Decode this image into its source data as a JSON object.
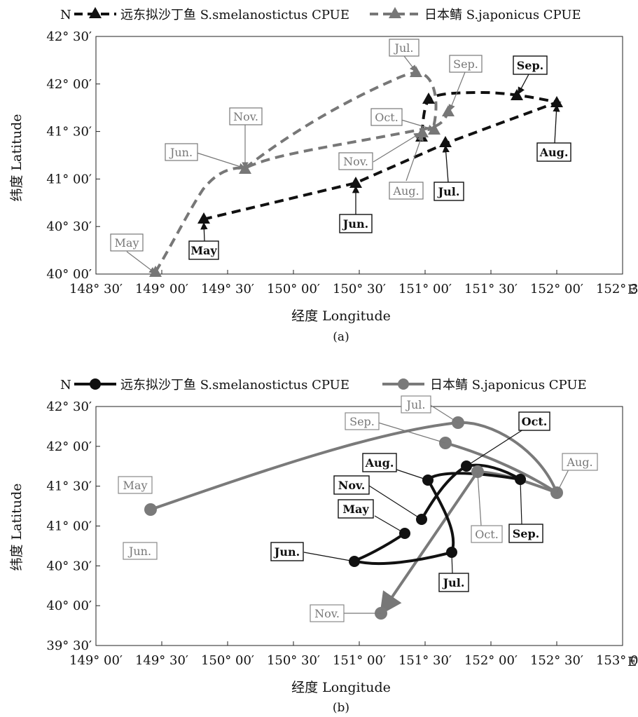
{
  "figure": {
    "north_label": "N",
    "east_label": "E",
    "xlabel": "经度 Longitude",
    "ylabel": "纬度 Latitude"
  },
  "chart_data": [
    {
      "type": "line",
      "panel_label": "(a)",
      "marker": "triangle",
      "line_style": "dashed",
      "xlim": [
        148.5,
        152.5
      ],
      "ylim": [
        40.0,
        42.5
      ],
      "x_ticks": [
        "148° 30′",
        "149° 00′",
        "149° 30′",
        "150° 00′",
        "150° 30′",
        "151° 00′",
        "151° 30′",
        "152° 00′",
        "152° 30′"
      ],
      "y_ticks": [
        "40° 00′",
        "40° 30′",
        "41° 00′",
        "41° 30′",
        "42° 00′",
        "42° 30′"
      ],
      "legend": [
        "远东拟沙丁鱼 S.smelanostictus CPUE",
        "日本鲭 S.japonicus CPUE"
      ],
      "series": [
        {
          "name": "远东拟沙丁鱼 S.smelanostictus CPUE",
          "color": "#111111",
          "points": [
            {
              "label": "May",
              "lon": 149.3,
              "lat": 40.62
            },
            {
              "label": "Jun.",
              "lon": 150.53,
              "lat": 40.98
            },
            {
              "label": "Jul.",
              "lon": 151.1,
              "lat": 41.45
            },
            {
              "label": "Aug.",
              "lon": 152.07,
              "lat": 41.78
            },
            {
              "label": "Sep.",
              "lon": 151.78,
              "lat": 41.88
            },
            {
              "label": "Oct.",
              "lon": 151.06,
              "lat": 41.85
            },
            {
              "label": "Nov.",
              "lon": 151.02,
              "lat": 41.48
            }
          ]
        },
        {
          "name": "日本鲭 S.japonicus CPUE",
          "color": "#707070",
          "points": [
            {
              "label": "May",
              "lon": 149.03,
              "lat": 40.02
            },
            {
              "label": "Jun.",
              "lon": 149.57,
              "lat": 41.13
            },
            {
              "label": "Jul.",
              "lon": 150.98,
              "lat": 42.13
            },
            {
              "label": "Aug.",
              "lon": 151.1,
              "lat": 41.53
            },
            {
              "label": "Sep.",
              "lon": 151.13,
              "lat": 41.72
            },
            {
              "label": "Oct.",
              "lon": 151.03,
              "lat": 41.52
            },
            {
              "label": "Nov.",
              "lon": 149.57,
              "lat": 41.13
            }
          ]
        }
      ]
    },
    {
      "type": "line",
      "panel_label": "(b)",
      "marker": "circle",
      "line_style": "solid",
      "xlim": [
        149.0,
        153.0
      ],
      "ylim": [
        39.5,
        42.5
      ],
      "x_ticks": [
        "149° 00′",
        "149° 30′",
        "150° 00′",
        "150° 30′",
        "151° 00′",
        "151° 30′",
        "152° 00′",
        "152° 30′",
        "153° 00′"
      ],
      "y_ticks": [
        "39° 30′",
        "40° 00′",
        "40° 30′",
        "41° 00′",
        "41° 30′",
        "42° 00′",
        "42° 30′"
      ],
      "legend": [
        "远东拟沙丁鱼 S.smelanostictus CPUE",
        "日本鲭 S.japonicus CPUE"
      ],
      "series": [
        {
          "name": "远东拟沙丁鱼 S.smelanostictus CPUE",
          "color": "#111111",
          "points": [
            {
              "label": "May",
              "lon": 151.02,
              "lat": 40.92
            },
            {
              "label": "Jun.",
              "lon": 150.58,
              "lat": 40.55
            },
            {
              "label": "Jul.",
              "lon": 151.78,
              "lat": 40.68
            },
            {
              "label": "Aug.",
              "lon": 151.58,
              "lat": 41.58
            },
            {
              "label": "Sep.",
              "lon": 152.43,
              "lat": 41.58
            },
            {
              "label": "Oct.",
              "lon": 151.83,
              "lat": 41.75
            },
            {
              "label": "Nov.",
              "lon": 151.47,
              "lat": 41.07
            }
          ]
        },
        {
          "name": "日本鲭 S.japonicus CPUE",
          "color": "#7a7a7a",
          "points": [
            {
              "label": "May",
              "lon": 149.48,
              "lat": 41.22
            },
            {
              "label": "Jun.",
              "lon": 149.48,
              "lat": 41.22
            },
            {
              "label": "Jul.",
              "lon": 151.93,
              "lat": 42.3
            },
            {
              "label": "Aug.",
              "lon": 152.7,
              "lat": 41.42
            },
            {
              "label": "Sep.",
              "lon": 151.82,
              "lat": 42.05
            },
            {
              "label": "Oct.",
              "lon": 152.07,
              "lat": 41.7
            },
            {
              "label": "Nov.",
              "lon": 151.3,
              "lat": 39.92
            }
          ]
        }
      ]
    }
  ]
}
